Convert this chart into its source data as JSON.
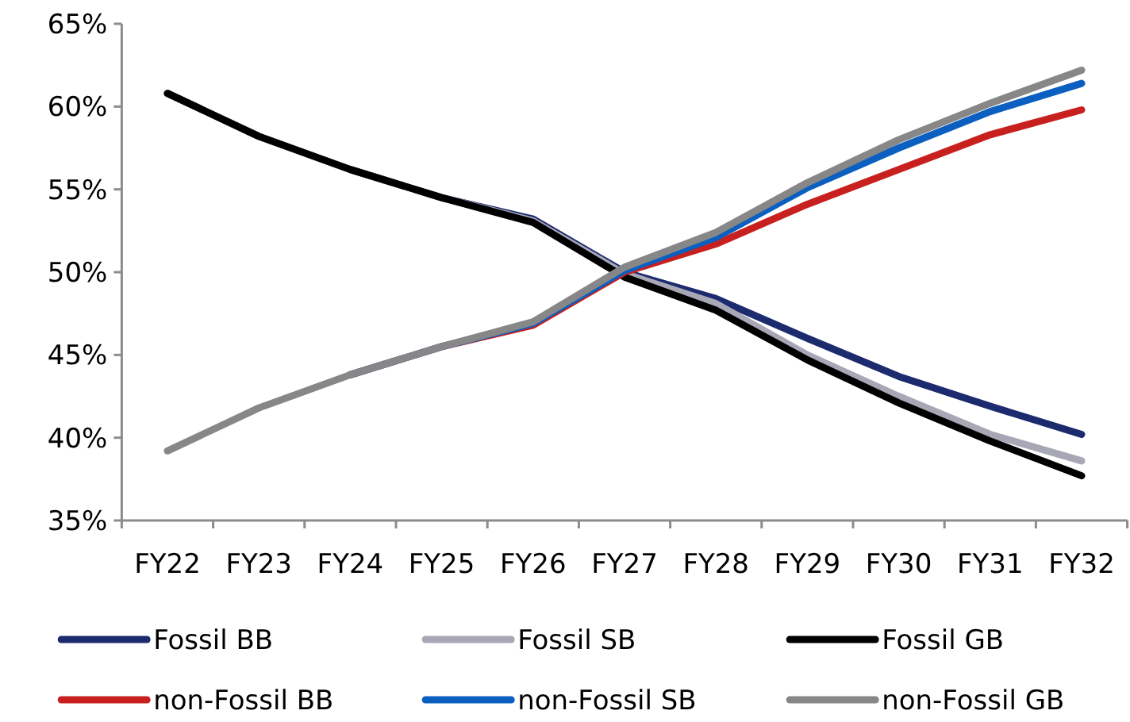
{
  "chart_data": {
    "type": "line",
    "categories": [
      "FY22",
      "FY23",
      "FY24",
      "FY25",
      "FY26",
      "FY27",
      "FY28",
      "FY29",
      "FY30",
      "FY31",
      "FY32"
    ],
    "series": [
      {
        "name": "Fossil BB",
        "color": "#1c2a6e",
        "values": [
          60.8,
          58.2,
          56.2,
          54.5,
          53.2,
          50.0,
          48.4,
          46.0,
          43.7,
          41.9,
          40.2
        ]
      },
      {
        "name": "Fossil SB",
        "color": "#a7a7b5",
        "values": [
          60.8,
          58.2,
          56.2,
          54.5,
          53.1,
          49.9,
          48.1,
          45.0,
          42.5,
          40.2,
          38.6
        ]
      },
      {
        "name": "Fossil GB",
        "color": "#000000",
        "values": [
          60.8,
          58.2,
          56.2,
          54.5,
          53.0,
          49.7,
          47.7,
          44.7,
          42.1,
          39.8,
          37.7
        ]
      },
      {
        "name": "non-Fossil BB",
        "color": "#c8201e",
        "values": [
          null,
          null,
          43.8,
          45.5,
          46.8,
          50.0,
          51.7,
          54.1,
          56.2,
          58.3,
          59.8
        ]
      },
      {
        "name": "non-Fossil SB",
        "color": "#0b5fc1",
        "values": [
          null,
          null,
          43.8,
          45.5,
          46.9,
          50.1,
          52.1,
          55.1,
          57.5,
          59.7,
          61.4
        ]
      },
      {
        "name": "non-Fossil GB",
        "color": "#878787",
        "values": [
          39.2,
          41.8,
          43.8,
          45.5,
          47.0,
          50.3,
          52.4,
          55.4,
          58.0,
          60.2,
          62.2
        ]
      }
    ],
    "ylim": [
      35,
      65
    ],
    "yticks": [
      {
        "value": 35,
        "label": "35%"
      },
      {
        "value": 40,
        "label": "40%"
      },
      {
        "value": 45,
        "label": "45%"
      },
      {
        "value": 50,
        "label": "50%"
      },
      {
        "value": 55,
        "label": "55%"
      },
      {
        "value": 60,
        "label": "60%"
      },
      {
        "value": 65,
        "label": "65%"
      }
    ],
    "legend": "bottom"
  }
}
